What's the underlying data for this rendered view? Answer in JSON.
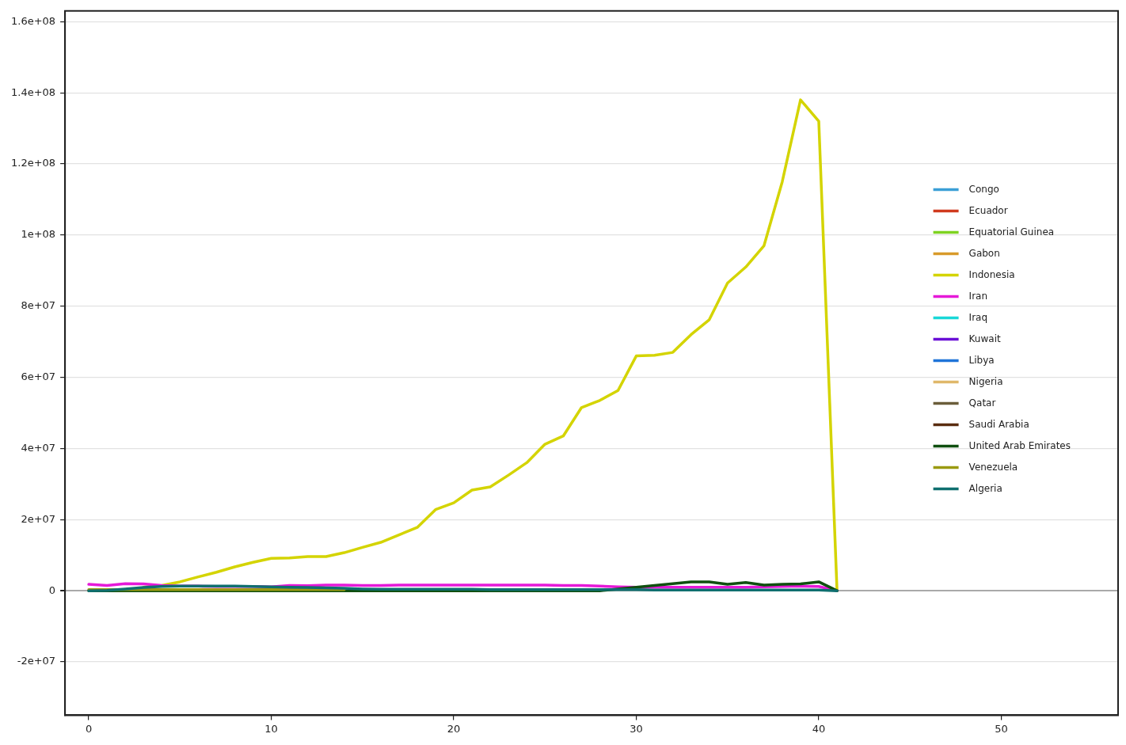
{
  "chart_data": {
    "type": "line",
    "x": [
      0,
      1,
      2,
      3,
      4,
      5,
      6,
      7,
      8,
      9,
      10,
      11,
      12,
      13,
      14,
      15,
      16,
      17,
      18,
      19,
      20,
      21,
      22,
      23,
      24,
      25,
      26,
      27,
      28,
      29,
      30,
      31,
      32,
      33,
      34,
      35,
      36,
      37,
      38,
      39,
      40,
      41
    ],
    "xlim": [
      -1.3,
      56.4
    ],
    "xticks": [
      0,
      10,
      20,
      30,
      40,
      50
    ],
    "ylim": [
      -35000000,
      163000000
    ],
    "yticks": [
      {
        "value": -20000000,
        "label": "-2e+07"
      },
      0,
      {
        "value": 20000000,
        "label": "2e+07"
      },
      {
        "value": 40000000,
        "label": "4e+07"
      },
      {
        "value": 60000000,
        "label": "6e+07"
      },
      {
        "value": 80000000,
        "label": "8e+07"
      },
      {
        "value": 100000000,
        "label": "1e+08"
      },
      {
        "value": 120000000,
        "label": "1.2e+08"
      },
      {
        "value": 140000000,
        "label": "1.4e+08"
      },
      {
        "value": 160000000,
        "label": "1.6e+08"
      }
    ],
    "grid": "y",
    "legend": "right",
    "marker": "none",
    "series": [
      {
        "name": "Congo",
        "color": "#3b9fd6",
        "values": [
          null,
          null,
          null,
          null,
          null,
          null,
          null,
          null,
          null,
          null,
          null,
          null,
          null,
          null,
          null,
          null,
          null,
          null,
          null,
          null,
          null,
          null,
          null,
          null,
          null,
          null,
          null,
          null,
          null,
          null,
          null,
          null,
          null,
          null,
          null,
          null,
          null,
          null,
          null,
          null,
          null,
          null
        ]
      },
      {
        "name": "Ecuador",
        "color": "#d03a1e",
        "values": [
          null,
          null,
          null,
          null,
          null,
          null,
          null,
          null,
          null,
          null,
          null,
          null,
          null,
          null,
          null,
          null,
          null,
          null,
          null,
          null,
          null,
          null,
          null,
          null,
          null,
          null,
          null,
          null,
          null,
          null,
          null,
          null,
          null,
          null,
          null,
          null,
          null,
          null,
          null,
          null,
          null,
          null
        ]
      },
      {
        "name": "Equatorial Guinea",
        "color": "#7ed321",
        "values": [
          null,
          null,
          null,
          null,
          null,
          null,
          null,
          null,
          null,
          null,
          null,
          null,
          null,
          null,
          null,
          null,
          null,
          null,
          null,
          null,
          null,
          null,
          null,
          null,
          null,
          null,
          null,
          null,
          null,
          null,
          null,
          null,
          null,
          null,
          null,
          null,
          null,
          null,
          null,
          null,
          null,
          null
        ]
      },
      {
        "name": "Gabon",
        "color": "#d89a2a",
        "values": [
          null,
          null,
          null,
          null,
          null,
          null,
          null,
          null,
          null,
          null,
          null,
          null,
          null,
          null,
          null,
          null,
          null,
          null,
          null,
          null,
          null,
          null,
          null,
          null,
          null,
          null,
          null,
          null,
          null,
          null,
          null,
          null,
          null,
          null,
          null,
          null,
          null,
          null,
          null,
          null,
          null,
          null
        ]
      },
      {
        "name": "Indonesia",
        "color": "#d4d400",
        "values": [
          null,
          null,
          null,
          1000000,
          1500000,
          2500000,
          3900000,
          5200000,
          6700000,
          8000000,
          9100000,
          9200000,
          9600000,
          9600000,
          10700000,
          12200000,
          13600000,
          15700000,
          17800000,
          22800000,
          24700000,
          28300000,
          29200000,
          32500000,
          36000000,
          41200000,
          43500000,
          51500000,
          53500000,
          56300000,
          66000000,
          66200000,
          67000000,
          72000000,
          76200000,
          86500000,
          91000000,
          97000000,
          115000000,
          138000000,
          132000000,
          0
        ]
      },
      {
        "name": "Iran",
        "color": "#e619d8",
        "values": [
          1800000,
          1500000,
          2000000,
          1900000,
          1500000,
          1300000,
          1300000,
          1200000,
          1200000,
          1200000,
          1100000,
          1500000,
          1400000,
          1600000,
          1600000,
          1500000,
          1500000,
          1600000,
          1600000,
          1600000,
          1600000,
          1600000,
          1600000,
          1600000,
          1600000,
          1600000,
          1500000,
          1500000,
          1300000,
          1100000,
          1000000,
          1000000,
          1000000,
          1000000,
          1000000,
          1000000,
          1000000,
          1100000,
          1200000,
          1300000,
          1200000,
          0
        ]
      },
      {
        "name": "Iraq",
        "color": "#19d8d8",
        "values": [
          null,
          null,
          null,
          null,
          null,
          null,
          null,
          null,
          null,
          null,
          null,
          null,
          null,
          null,
          null,
          null,
          null,
          null,
          null,
          null,
          null,
          null,
          null,
          null,
          null,
          null,
          null,
          null,
          null,
          null,
          null,
          null,
          null,
          null,
          null,
          null,
          null,
          null,
          null,
          null,
          null,
          null
        ]
      },
      {
        "name": "Kuwait",
        "color": "#6a0fd6",
        "values": [
          null,
          null,
          null,
          null,
          null,
          null,
          null,
          null,
          null,
          null,
          null,
          null,
          null,
          null,
          null,
          null,
          null,
          null,
          null,
          null,
          null,
          null,
          null,
          null,
          null,
          null,
          null,
          null,
          null,
          null,
          null,
          null,
          null,
          null,
          null,
          null,
          null,
          null,
          null,
          null,
          null,
          null
        ]
      },
      {
        "name": "Libya",
        "color": "#1f74d8",
        "values": [
          null,
          null,
          null,
          null,
          null,
          null,
          null,
          null,
          null,
          null,
          null,
          null,
          null,
          null,
          null,
          null,
          null,
          null,
          null,
          null,
          null,
          null,
          null,
          null,
          null,
          null,
          null,
          null,
          null,
          null,
          null,
          null,
          null,
          null,
          null,
          null,
          null,
          null,
          null,
          null,
          null,
          null
        ]
      },
      {
        "name": "Nigeria",
        "color": "#e0b86a",
        "values": [
          null,
          null,
          null,
          null,
          null,
          null,
          null,
          null,
          null,
          null,
          null,
          null,
          null,
          null,
          null,
          null,
          null,
          null,
          null,
          null,
          null,
          null,
          null,
          null,
          null,
          null,
          null,
          null,
          null,
          null,
          null,
          null,
          null,
          null,
          null,
          null,
          null,
          null,
          null,
          null,
          null,
          null
        ]
      },
      {
        "name": "Qatar",
        "color": "#6b5d3a",
        "values": [
          null,
          null,
          null,
          null,
          null,
          null,
          null,
          null,
          null,
          null,
          null,
          null,
          null,
          null,
          null,
          null,
          null,
          null,
          null,
          null,
          null,
          null,
          null,
          null,
          null,
          null,
          null,
          null,
          null,
          null,
          null,
          null,
          null,
          null,
          null,
          null,
          null,
          null,
          null,
          null,
          null,
          null
        ]
      },
      {
        "name": "Saudi Arabia",
        "color": "#5a2d10",
        "values": [
          null,
          null,
          null,
          null,
          null,
          null,
          null,
          null,
          null,
          null,
          null,
          null,
          null,
          null,
          null,
          null,
          null,
          null,
          null,
          null,
          null,
          null,
          null,
          null,
          null,
          null,
          null,
          null,
          null,
          null,
          null,
          null,
          null,
          null,
          null,
          null,
          null,
          null,
          null,
          null,
          null,
          null
        ]
      },
      {
        "name": "United Arab Emirates",
        "color": "#0f4f0f",
        "values": [
          0,
          0,
          0,
          0,
          0,
          0,
          0,
          0,
          0,
          0,
          0,
          0,
          0,
          0,
          0,
          0,
          0,
          0,
          0,
          0,
          0,
          0,
          0,
          0,
          0,
          0,
          0,
          0,
          0,
          500000,
          1000000,
          1500000,
          2000000,
          2500000,
          2500000,
          1800000,
          2300000,
          1600000,
          1800000,
          1900000,
          2500000,
          0
        ]
      },
      {
        "name": "Venezuela",
        "color": "#9a9a10",
        "values": [
          300000,
          300000,
          300000,
          300000,
          300000,
          300000,
          300000,
          300000,
          300000,
          300000,
          300000,
          300000,
          300000,
          300000,
          300000,
          null,
          null,
          null,
          null,
          null,
          null,
          null,
          null,
          null,
          null,
          null,
          null,
          null,
          null,
          null,
          null,
          null,
          null,
          null,
          null,
          null,
          null,
          null,
          null,
          null,
          null,
          null
        ]
      },
      {
        "name": "Algeria",
        "color": "#0f6f6f",
        "values": [
          0,
          100000,
          500000,
          900000,
          1200000,
          1300000,
          1300000,
          1300000,
          1300000,
          1200000,
          1100000,
          1000000,
          900000,
          800000,
          700000,
          500000,
          400000,
          400000,
          400000,
          400000,
          400000,
          400000,
          300000,
          300000,
          300000,
          300000,
          300000,
          300000,
          300000,
          300000,
          300000,
          200000,
          200000,
          200000,
          200000,
          200000,
          200000,
          200000,
          200000,
          200000,
          200000,
          0
        ]
      }
    ]
  }
}
